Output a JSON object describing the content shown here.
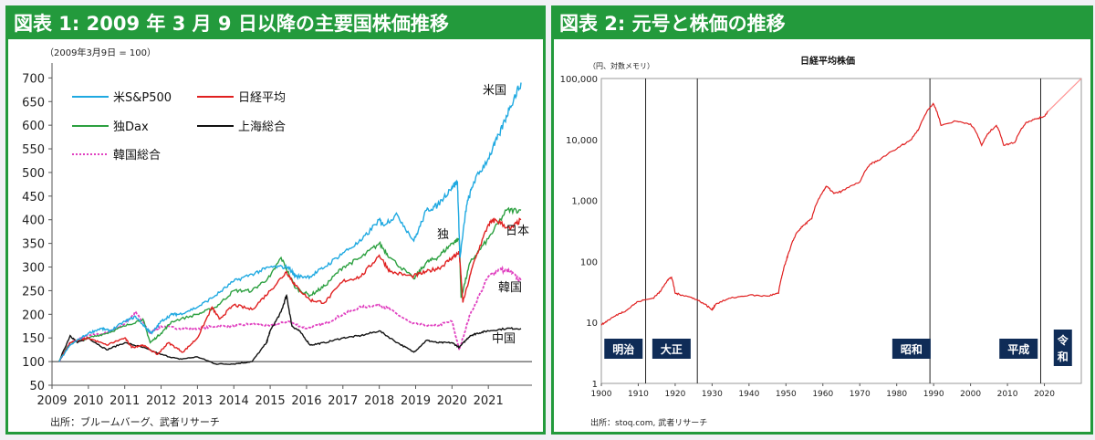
{
  "panel1": {
    "title": "図表 1: 2009 年 3 月 9 日以降の主要国株価推移",
    "chart_data": {
      "type": "line",
      "note": "（2009年3月9日 = 100）",
      "source": "出所：ブルームバーグ、武者リサーチ",
      "ylim": [
        50,
        720
      ],
      "yticks": [
        50,
        100,
        150,
        200,
        250,
        300,
        350,
        400,
        450,
        500,
        550,
        600,
        650,
        700
      ],
      "xlim": [
        2009,
        2022.2
      ],
      "xticks": [
        2009,
        2010,
        2011,
        2012,
        2013,
        2014,
        2015,
        2016,
        2017,
        2018,
        2019,
        2020,
        2021
      ],
      "legend": [
        "米S&P500",
        "日経平均",
        "独Dax",
        "上海総合",
        "韓国総合"
      ],
      "series": [
        {
          "name": "米S&P500",
          "label": "米国",
          "color": "#1fa9e1",
          "x": [
            2009.19,
            2009.5,
            2010,
            2010.35,
            2010.6,
            2011,
            2011.3,
            2011.6,
            2011.75,
            2012,
            2012.3,
            2012.5,
            2013,
            2013.5,
            2014,
            2014.5,
            2015,
            2015.5,
            2015.7,
            2016.1,
            2016.5,
            2017,
            2017.5,
            2018,
            2018.1,
            2018.5,
            2018.95,
            2019.3,
            2019.6,
            2020,
            2020.15,
            2020.22,
            2020.4,
            2020.6,
            2021,
            2021.3,
            2021.6,
            2021.9
          ],
          "y": [
            100,
            135,
            160,
            170,
            165,
            185,
            195,
            170,
            160,
            185,
            200,
            200,
            215,
            240,
            270,
            285,
            300,
            300,
            280,
            280,
            300,
            330,
            355,
            400,
            390,
            410,
            355,
            420,
            430,
            470,
            480,
            320,
            430,
            480,
            530,
            580,
            640,
            690
          ]
        },
        {
          "name": "日経平均",
          "label": "日本",
          "color": "#e02020",
          "x": [
            2009.19,
            2009.5,
            2010,
            2010.5,
            2011,
            2011.2,
            2011.5,
            2011.9,
            2012.2,
            2012.6,
            2013,
            2013.4,
            2013.6,
            2014,
            2014.5,
            2015,
            2015.45,
            2015.7,
            2016.1,
            2016.5,
            2017,
            2017.5,
            2018,
            2018.3,
            2018.9,
            2019.3,
            2019.7,
            2020,
            2020.2,
            2020.3,
            2020.6,
            2021,
            2021.2,
            2021.6,
            2021.9
          ],
          "y": [
            100,
            140,
            150,
            135,
            150,
            130,
            135,
            115,
            140,
            120,
            150,
            215,
            190,
            220,
            210,
            250,
            290,
            260,
            230,
            225,
            270,
            280,
            325,
            290,
            280,
            290,
            300,
            320,
            330,
            225,
            310,
            390,
            400,
            380,
            400
          ]
        },
        {
          "name": "独Dax",
          "label": "独",
          "color": "#2ca040",
          "x": [
            2009.19,
            2009.5,
            2010,
            2010.5,
            2011,
            2011.5,
            2011.7,
            2012,
            2012.3,
            2013,
            2013.5,
            2014,
            2014.5,
            2015,
            2015.3,
            2015.7,
            2016.1,
            2016.5,
            2017,
            2017.5,
            2018,
            2018.3,
            2018.95,
            2019.3,
            2019.6,
            2020,
            2020.2,
            2020.25,
            2020.5,
            2021,
            2021.5,
            2021.9
          ],
          "y": [
            100,
            140,
            150,
            160,
            175,
            190,
            140,
            160,
            185,
            200,
            215,
            250,
            250,
            280,
            320,
            255,
            240,
            260,
            300,
            320,
            350,
            320,
            275,
            310,
            320,
            350,
            360,
            235,
            310,
            360,
            420,
            420
          ]
        },
        {
          "name": "上海総合",
          "label": "中国",
          "color": "#111111",
          "x": [
            2009.19,
            2009.5,
            2009.7,
            2010,
            2010.5,
            2011,
            2011.5,
            2012,
            2012.5,
            2013,
            2013.5,
            2014,
            2014.5,
            2014.9,
            2015,
            2015.3,
            2015.45,
            2015.6,
            2015.8,
            2016.1,
            2016.5,
            2017,
            2017.5,
            2018,
            2018.5,
            2018.95,
            2019.3,
            2019.6,
            2020,
            2020.2,
            2020.5,
            2020.7,
            2021,
            2021.5,
            2021.9
          ],
          "y": [
            100,
            155,
            140,
            150,
            125,
            140,
            130,
            115,
            105,
            110,
            95,
            95,
            100,
            140,
            165,
            205,
            240,
            175,
            165,
            135,
            140,
            150,
            155,
            165,
            140,
            120,
            145,
            140,
            140,
            130,
            155,
            160,
            165,
            170,
            170
          ]
        },
        {
          "name": "韓国総合",
          "label": "韓国",
          "color": "#e040c0",
          "dashed": true,
          "x": [
            2009.19,
            2009.5,
            2010,
            2010.5,
            2011,
            2011.3,
            2011.7,
            2012,
            2012.5,
            2013,
            2013.5,
            2014,
            2014.5,
            2015,
            2015.5,
            2016,
            2016.5,
            2017,
            2017.5,
            2018,
            2018.3,
            2018.9,
            2019.5,
            2020,
            2020.2,
            2020.5,
            2021,
            2021.3,
            2021.6,
            2021.9
          ],
          "y": [
            100,
            140,
            155,
            160,
            180,
            205,
            160,
            175,
            170,
            170,
            175,
            175,
            180,
            175,
            185,
            170,
            180,
            200,
            215,
            220,
            210,
            180,
            175,
            185,
            125,
            200,
            280,
            295,
            290,
            270
          ]
        }
      ]
    }
  },
  "panel2": {
    "title": "図表 2: 元号と株価の推移",
    "chart_data": {
      "type": "line",
      "title": "日経平均株価",
      "ylabel": "（円、対数メモリ）",
      "yscale": "log",
      "ylim": [
        1,
        100000
      ],
      "yticks": [
        1,
        10,
        100,
        1000,
        10000,
        100000
      ],
      "yticklabels": [
        "1",
        "10",
        "100",
        "1,000",
        "10,000",
        "100,000"
      ],
      "xlim": [
        1900,
        2030
      ],
      "xticks": [
        1900,
        1910,
        1920,
        1930,
        1940,
        1950,
        1960,
        1970,
        1980,
        1990,
        2000,
        2010,
        2020
      ],
      "source": "出所：stoq.com, 武者リサーチ",
      "eras": [
        {
          "name": "明治",
          "start": 1900,
          "end": 1912
        },
        {
          "name": "大正",
          "start": 1912,
          "end": 1926
        },
        {
          "name": "昭和",
          "start": 1926,
          "end": 1989
        },
        {
          "name": "平成",
          "start": 1989,
          "end": 2019
        },
        {
          "name": "令和",
          "start": 2019,
          "end": 2030
        }
      ],
      "series": [
        {
          "name": "日経平均株価",
          "color": "#e02020",
          "x": [
            1900,
            1902,
            1905,
            1907,
            1910,
            1914,
            1916,
            1918,
            1919,
            1920,
            1922,
            1925,
            1928,
            1930,
            1931,
            1935,
            1940,
            1945,
            1948,
            1949,
            1950,
            1951,
            1953,
            1955,
            1957,
            1960,
            1961,
            1963,
            1965,
            1970,
            1973,
            1975,
            1980,
            1984,
            1986,
            1989.9,
            1992,
            1996,
            2000,
            2003,
            2005,
            2007,
            2009,
            2012,
            2015,
            2018,
            2020,
            2021
          ],
          "y": [
            9,
            11,
            14,
            16,
            22,
            25,
            32,
            50,
            55,
            30,
            28,
            25,
            20,
            16,
            20,
            25,
            28,
            27,
            30,
            60,
            100,
            150,
            300,
            400,
            500,
            1400,
            1700,
            1300,
            1400,
            2000,
            4000,
            4500,
            7000,
            10000,
            15000,
            38900,
            17000,
            20000,
            18000,
            8000,
            13000,
            17000,
            8000,
            9000,
            19000,
            22000,
            24000,
            29000
          ]
        },
        {
          "name": "trend",
          "color": "#ff9090",
          "x": [
            2021,
            2030
          ],
          "y": [
            29000,
            100000
          ]
        }
      ]
    }
  }
}
